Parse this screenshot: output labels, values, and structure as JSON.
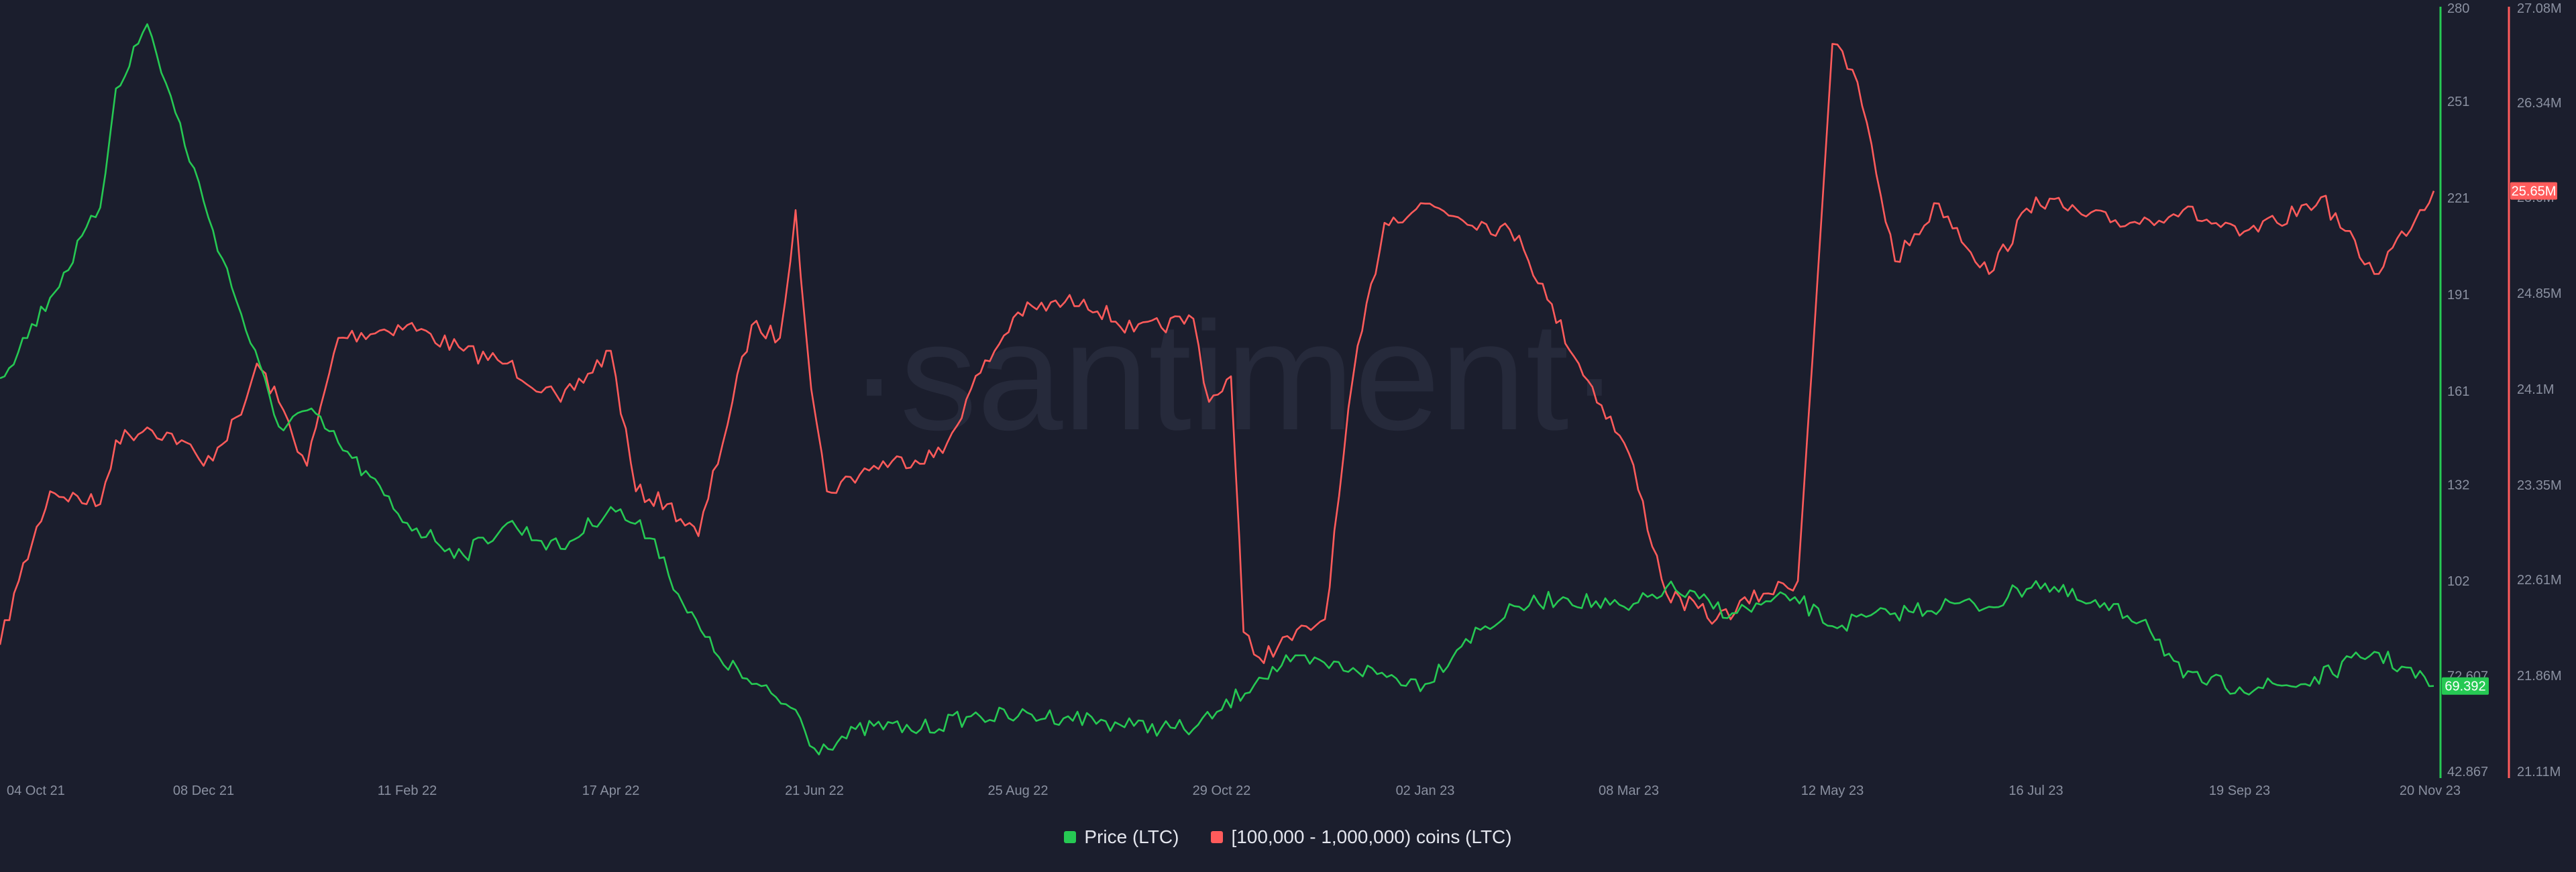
{
  "watermark": "·santiment·",
  "chart_data": {
    "type": "line",
    "x_ticks": [
      "04 Oct 21",
      "08 Dec 21",
      "11 Feb 22",
      "17 Apr 22",
      "21 Jun 22",
      "25 Aug 22",
      "29 Oct 22",
      "02 Jan 23",
      "08 Mar 23",
      "12 May 23",
      "16 Jul 23",
      "19 Sep 23",
      "20 Nov 23"
    ],
    "y_left": {
      "ticks": [
        "280",
        "251",
        "221",
        "191",
        "161",
        "132",
        "102",
        "72.607",
        "42.867"
      ],
      "range": [
        42.867,
        280
      ],
      "color": "#26c953"
    },
    "y_right": {
      "ticks": [
        "27.08M",
        "26.34M",
        "25.6M",
        "24.85M",
        "24.1M",
        "23.35M",
        "22.61M",
        "21.86M",
        "21.11M"
      ],
      "range": [
        21.11,
        27.08
      ],
      "color": "#ff5b5b"
    },
    "current_price_label": "69.392",
    "current_holdings_label": "25.65M",
    "series": [
      {
        "name": "Price (LTC)",
        "axis": "left",
        "color": "#26c953",
        "x": [
          "04 Oct 21",
          "20 Oct 21",
          "05 Nov 21",
          "10 Nov 21",
          "20 Nov 21",
          "08 Dec 21",
          "20 Dec 21",
          "01 Jan 22",
          "10 Jan 22",
          "20 Jan 22",
          "11 Feb 22",
          "01 Mar 22",
          "15 Mar 22",
          "01 Apr 22",
          "17 Apr 22",
          "01 May 22",
          "10 May 22",
          "20 May 22",
          "01 Jun 22",
          "15 Jun 22",
          "21 Jun 22",
          "10 Jul 22",
          "25 Jul 22",
          "10 Aug 22",
          "25 Aug 22",
          "10 Sep 22",
          "01 Oct 22",
          "20 Oct 22",
          "29 Oct 22",
          "10 Nov 22",
          "20 Nov 22",
          "10 Dec 22",
          "02 Jan 23",
          "15 Jan 23",
          "01 Feb 23",
          "15 Feb 23",
          "08 Mar 23",
          "20 Mar 23",
          "10 Apr 23",
          "30 Apr 23",
          "12 May 23",
          "01 Jun 23",
          "20 Jun 23",
          "01 Jul 23",
          "16 Jul 23",
          "01 Aug 23",
          "20 Aug 23",
          "01 Sep 23",
          "19 Sep 23",
          "10 Oct 23",
          "01 Nov 23",
          "20 Nov 23"
        ],
        "values": [
          165,
          190,
          218,
          255,
          275,
          220,
          185,
          150,
          155,
          145,
          120,
          110,
          120,
          112,
          125,
          115,
          95,
          80,
          70,
          62,
          50,
          57,
          56,
          60,
          60,
          60,
          57,
          56,
          62,
          72,
          77,
          75,
          70,
          84,
          94,
          97,
          93,
          100,
          92,
          97,
          88,
          92,
          95,
          94,
          102,
          95,
          90,
          72,
          69,
          70,
          80,
          69.392
        ]
      },
      {
        "name": "[100,000  - 1,000,000) coins (LTC)",
        "axis": "right",
        "color": "#ff5b5b",
        "x": [
          "04 Oct 21",
          "10 Oct 21",
          "20 Oct 21",
          "05 Nov 21",
          "10 Nov 21",
          "20 Nov 21",
          "01 Dec 21",
          "08 Dec 21",
          "20 Dec 21",
          "25 Dec 21",
          "01 Jan 22",
          "10 Jan 22",
          "20 Jan 22",
          "11 Feb 22",
          "01 Mar 22",
          "15 Mar 22",
          "01 Apr 22",
          "17 Apr 22",
          "25 Apr 22",
          "05 May 22",
          "15 May 22",
          "01 Jun 22",
          "10 Jun 22",
          "15 Jun 22",
          "20 Jun 22",
          "25 Jun 22",
          "10 Jul 22",
          "01 Aug 22",
          "10 Aug 22",
          "25 Aug 22",
          "15 Sep 22",
          "01 Oct 22",
          "20 Oct 22",
          "25 Oct 22",
          "01 Nov 22",
          "05 Nov 22",
          "10 Nov 22",
          "01 Dec 22",
          "10 Dec 22",
          "20 Dec 22",
          "02 Jan 23",
          "01 Feb 23",
          "10 Feb 23",
          "20 Feb 23",
          "08 Mar 23",
          "20 Mar 23",
          "05 Apr 23",
          "20 Apr 23",
          "01 May 23",
          "12 May 23",
          "20 May 23",
          "01 Jun 23",
          "15 Jun 23",
          "01 Jul 23",
          "16 Jul 23",
          "01 Aug 23",
          "15 Aug 23",
          "01 Sep 23",
          "19 Sep 23",
          "01 Oct 23",
          "15 Oct 23",
          "01 Nov 23",
          "20 Nov 23"
        ],
        "values": [
          22.1,
          22.6,
          23.3,
          23.2,
          23.7,
          23.8,
          23.7,
          23.5,
          23.9,
          24.3,
          24.0,
          23.5,
          24.5,
          24.6,
          24.4,
          24.3,
          24.0,
          24.4,
          23.3,
          23.2,
          22.95,
          24.6,
          24.5,
          25.5,
          24.1,
          23.3,
          23.5,
          23.6,
          24.1,
          24.7,
          24.8,
          24.55,
          24.65,
          24.0,
          24.2,
          22.2,
          22.0,
          22.3,
          24.2,
          25.4,
          25.55,
          25.3,
          24.8,
          24.3,
          23.6,
          22.5,
          22.3,
          22.5,
          22.6,
          26.8,
          26.5,
          25.1,
          25.55,
          25.0,
          25.6,
          25.45,
          25.4,
          25.5,
          25.3,
          25.4,
          25.6,
          25.0,
          25.65
        ]
      }
    ]
  },
  "legend": {
    "items": [
      {
        "label": "Price (LTC)",
        "color": "#26c953"
      },
      {
        "label": "[100,000  - 1,000,000) coins (LTC)",
        "color": "#ff5b5b"
      }
    ]
  }
}
